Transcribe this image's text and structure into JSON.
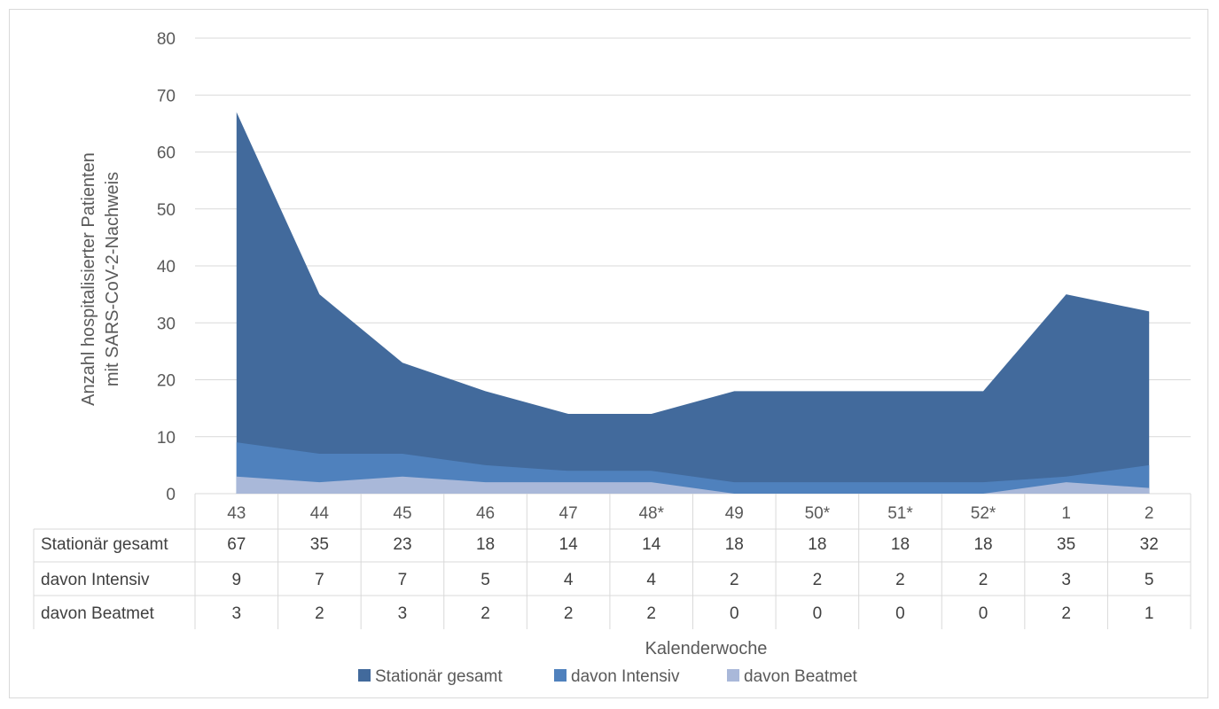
{
  "chart_data": {
    "type": "area",
    "xlabel": "Kalenderwoche",
    "ylabel": [
      "Anzahl hospitalisierter Patienten",
      "mit SARS-CoV-2-Nachweis"
    ],
    "ylim": [
      0,
      80
    ],
    "yticks": [
      0,
      10,
      20,
      30,
      40,
      50,
      60,
      70,
      80
    ],
    "grid": true,
    "legend_position": "bottom",
    "categories": [
      "43",
      "44",
      "45",
      "46",
      "47",
      "48*",
      "49",
      "50*",
      "51*",
      "52*",
      "1",
      "2"
    ],
    "series": [
      {
        "name": "Stationär gesamt",
        "color": "#426a9c",
        "values": [
          67,
          35,
          23,
          18,
          14,
          14,
          18,
          18,
          18,
          18,
          35,
          32
        ]
      },
      {
        "name": "davon Intensiv",
        "color": "#4f81bd",
        "values": [
          9,
          7,
          7,
          5,
          4,
          4,
          2,
          2,
          2,
          2,
          3,
          5
        ]
      },
      {
        "name": "davon Beatmet",
        "color": "#a9b8d9",
        "values": [
          3,
          2,
          3,
          2,
          2,
          2,
          0,
          0,
          0,
          0,
          2,
          1
        ]
      }
    ]
  }
}
